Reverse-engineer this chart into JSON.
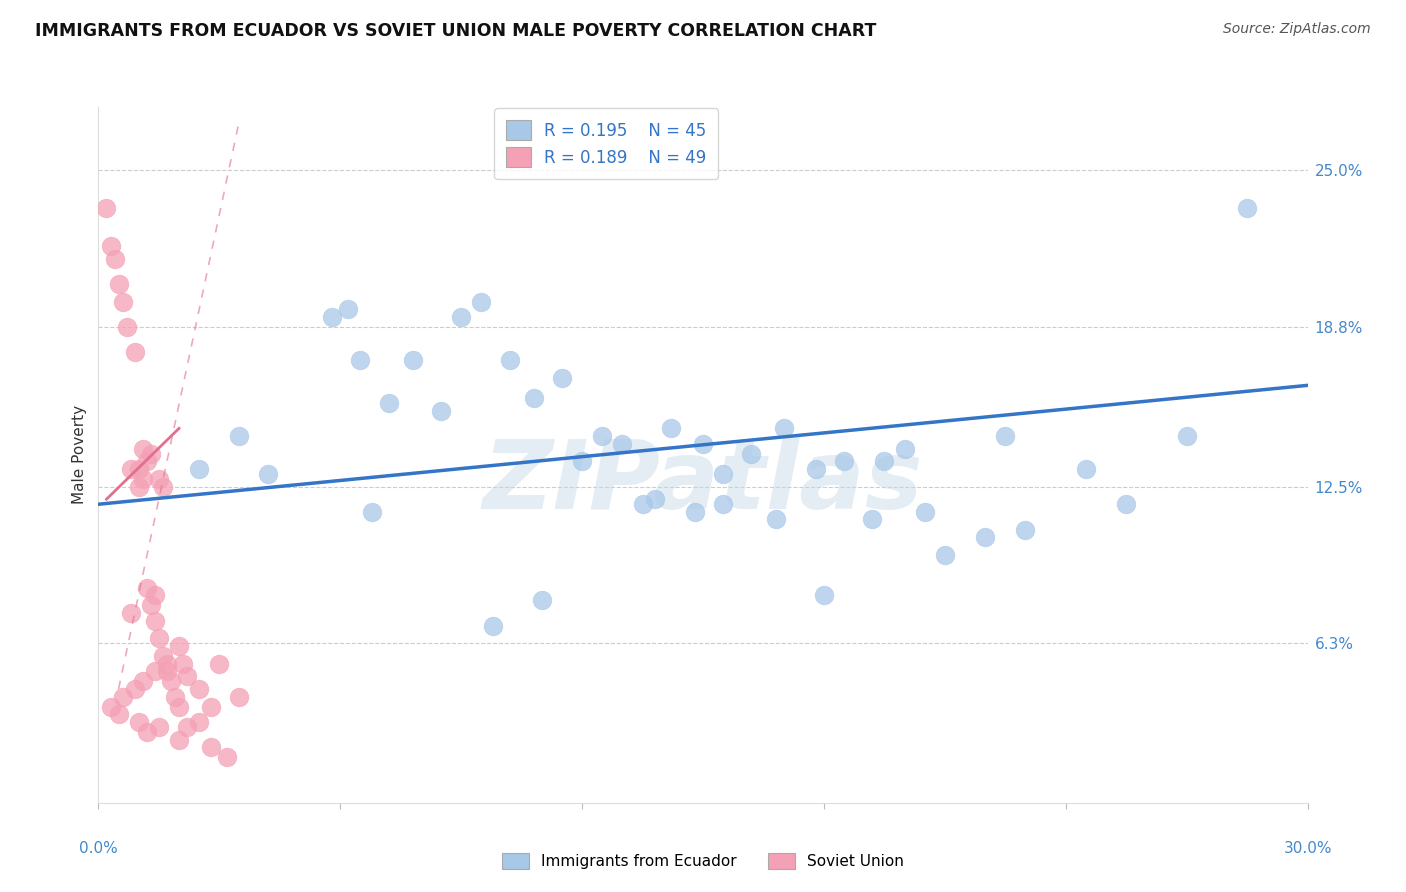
{
  "title": "IMMIGRANTS FROM ECUADOR VS SOVIET UNION MALE POVERTY CORRELATION CHART",
  "source": "Source: ZipAtlas.com",
  "ylabel": "Male Poverty",
  "ylabel_ticks": [
    "6.3%",
    "12.5%",
    "18.8%",
    "25.0%"
  ],
  "ylabel_values": [
    6.3,
    12.5,
    18.8,
    25.0
  ],
  "xlim": [
    0.0,
    30.0
  ],
  "ylim": [
    0.0,
    27.5
  ],
  "ecuador_R": 0.195,
  "ecuador_N": 45,
  "soviet_R": 0.189,
  "soviet_N": 49,
  "ecuador_color": "#a8c8e8",
  "soviet_color": "#f4a0b5",
  "ecuador_line_color": "#3575c8",
  "soviet_line_color": "#e07090",
  "watermark_text": "ZIPatlas",
  "ecuador_x": [
    2.5,
    3.5,
    4.2,
    5.8,
    6.2,
    6.5,
    7.2,
    7.8,
    8.5,
    9.0,
    9.5,
    10.2,
    10.8,
    11.5,
    12.0,
    12.5,
    13.0,
    13.5,
    14.2,
    15.0,
    15.5,
    16.2,
    17.0,
    17.8,
    18.5,
    19.2,
    19.5,
    20.0,
    20.5,
    21.0,
    22.0,
    23.0,
    24.5,
    25.5,
    27.0,
    28.5,
    15.5,
    16.8,
    13.8,
    14.8,
    22.5,
    18.0,
    11.0,
    9.8,
    6.8
  ],
  "ecuador_y": [
    13.2,
    14.5,
    13.0,
    19.2,
    19.5,
    17.5,
    15.8,
    17.5,
    15.5,
    19.2,
    19.8,
    17.5,
    16.0,
    16.8,
    13.5,
    14.5,
    14.2,
    11.8,
    14.8,
    14.2,
    13.0,
    13.8,
    14.8,
    13.2,
    13.5,
    11.2,
    13.5,
    14.0,
    11.5,
    9.8,
    10.5,
    10.8,
    13.2,
    11.8,
    14.5,
    23.5,
    11.8,
    11.2,
    12.0,
    11.5,
    14.5,
    8.2,
    8.0,
    7.0,
    11.5
  ],
  "soviet_x": [
    0.2,
    0.3,
    0.4,
    0.5,
    0.6,
    0.7,
    0.8,
    0.9,
    1.0,
    1.0,
    1.1,
    1.1,
    1.2,
    1.2,
    1.3,
    1.3,
    1.4,
    1.4,
    1.5,
    1.5,
    1.6,
    1.6,
    1.7,
    1.8,
    1.9,
    2.0,
    2.0,
    2.1,
    2.2,
    2.5,
    2.8,
    3.0,
    3.5,
    1.0,
    0.5,
    0.8,
    1.2,
    1.5,
    2.0,
    2.5,
    0.3,
    0.6,
    0.9,
    1.1,
    1.4,
    1.7,
    2.2,
    2.8,
    3.2
  ],
  "soviet_y": [
    23.5,
    22.0,
    21.5,
    20.5,
    19.8,
    18.8,
    13.2,
    17.8,
    12.5,
    13.2,
    12.8,
    14.0,
    13.5,
    8.5,
    13.8,
    7.8,
    8.2,
    7.2,
    12.8,
    6.5,
    5.8,
    12.5,
    5.2,
    4.8,
    4.2,
    6.2,
    3.8,
    5.5,
    5.0,
    4.5,
    3.8,
    5.5,
    4.2,
    3.2,
    3.5,
    7.5,
    2.8,
    3.0,
    2.5,
    3.2,
    3.8,
    4.2,
    4.5,
    4.8,
    5.2,
    5.5,
    3.0,
    2.2,
    1.8
  ],
  "soviet_line_x0": 0.0,
  "soviet_line_x1": 4.5,
  "soviet_line_y0": 12.2,
  "soviet_line_y1": 14.5,
  "soviet_dashed_x0": 0.5,
  "soviet_dashed_x1": 3.8,
  "soviet_dashed_y0": 5.5,
  "soviet_dashed_y1": 27.0
}
